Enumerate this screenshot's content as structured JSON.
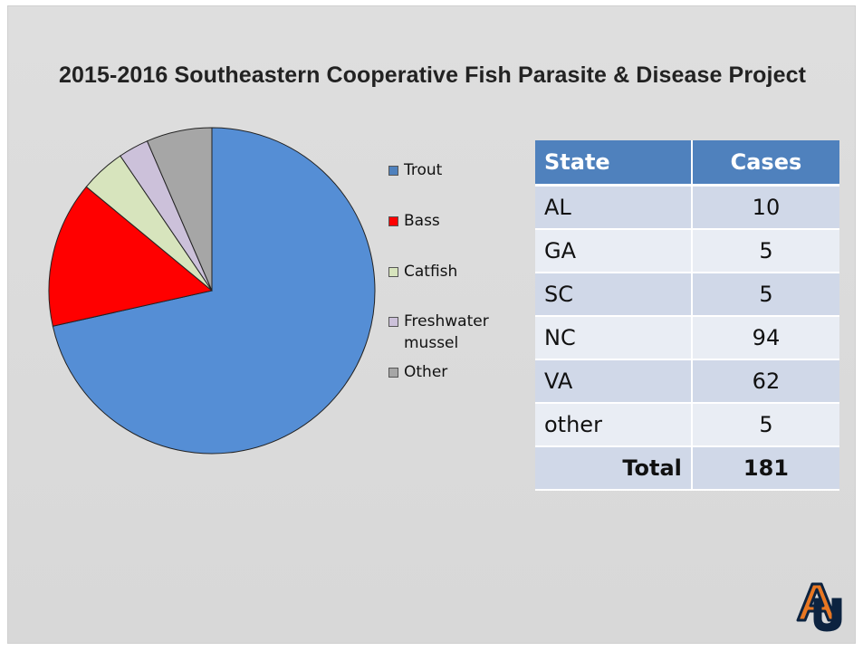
{
  "slide": {
    "title": "2015-2016 Southeastern Cooperative Fish Parasite & Disease Project"
  },
  "chart_data": {
    "type": "pie",
    "title": "",
    "slices": [
      {
        "label": "Trout",
        "value": 71.5,
        "color": "#558ed5"
      },
      {
        "label": "Bass",
        "value": 14.5,
        "color": "#ff0000"
      },
      {
        "label": "Catfish",
        "value": 4.5,
        "color": "#d7e4bd"
      },
      {
        "label": "Freshwater mussel",
        "value": 3.0,
        "color": "#ccc1da"
      },
      {
        "label": "Other",
        "value": 6.5,
        "color": "#a6a6a6"
      }
    ],
    "legend_position": "right"
  },
  "legend": {
    "items": [
      {
        "label": "Trout",
        "color": "#4f81bd"
      },
      {
        "label": "Bass",
        "color": "#ff0000"
      },
      {
        "label": "Catfish",
        "color": "#d7e4bd"
      },
      {
        "label": "Freshwater mussel",
        "color": "#ccc1da"
      },
      {
        "label": "Other",
        "color": "#a6a6a6"
      }
    ]
  },
  "table": {
    "headers": [
      "State",
      "Cases"
    ],
    "rows": [
      {
        "state": "AL",
        "cases": "10"
      },
      {
        "state": "GA",
        "cases": "5"
      },
      {
        "state": "SC",
        "cases": "5"
      },
      {
        "state": "NC",
        "cases": "94"
      },
      {
        "state": "VA",
        "cases": "62"
      },
      {
        "state": "other",
        "cases": "5"
      }
    ],
    "total_label": "Total",
    "total_value": "181",
    "header_color": "#4f81bd"
  },
  "logo": {
    "icon": "auburn-au-logo-icon",
    "colors": {
      "navy": "#0c2340",
      "orange": "#e87722"
    }
  }
}
